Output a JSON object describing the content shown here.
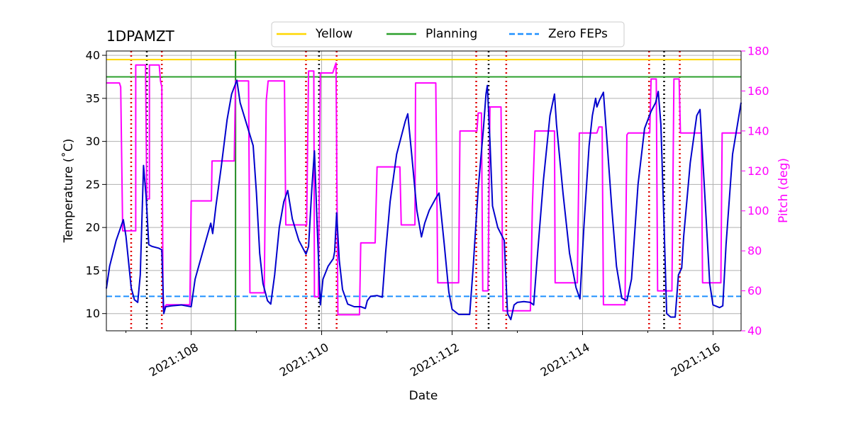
{
  "chart_data": {
    "type": "line",
    "title": "1DPAMZT",
    "xlabel": "Date",
    "ylabel": "Temperature ($^\\circ$C)",
    "ylabel_display": "Temperature (˚C)",
    "y2label": "Pitch (deg)",
    "xlim": [
      106.7,
      116.43
    ],
    "ylim": [
      8,
      40.5
    ],
    "y2lim": [
      40,
      180
    ],
    "x_ticks": [
      {
        "value": 108,
        "label": "2021:108"
      },
      {
        "value": 110,
        "label": "2021:110"
      },
      {
        "value": 112,
        "label": "2021:112"
      },
      {
        "value": 114,
        "label": "2021:114"
      },
      {
        "value": 116,
        "label": "2021:116"
      }
    ],
    "y_ticks": [
      10,
      15,
      20,
      25,
      30,
      35,
      40
    ],
    "y2_ticks": [
      40,
      60,
      80,
      100,
      120,
      140,
      160,
      180
    ],
    "grid": true,
    "legend": {
      "placement": "top-center",
      "entries": [
        {
          "name": "Yellow",
          "color": "#ffd700",
          "style": "solid"
        },
        {
          "name": "Planning",
          "color": "#2ca02c",
          "style": "solid"
        },
        {
          "name": "Zero FEPs",
          "color": "#1e90ff",
          "style": "dashed"
        }
      ]
    },
    "hlines": [
      {
        "name": "Yellow",
        "y": 39.5,
        "color": "#ffd700",
        "style": "solid"
      },
      {
        "name": "Planning",
        "y": 37.5,
        "color": "#2ca02c",
        "style": "solid"
      },
      {
        "name": "Zero FEPs",
        "y": 12.0,
        "color": "#1e90ff",
        "style": "dashed"
      }
    ],
    "vlines": {
      "green": [
        108.68
      ],
      "black_dotted": [
        107.32,
        109.96,
        112.56,
        115.25
      ],
      "red_dotted": [
        107.08,
        107.55,
        109.76,
        110.23,
        112.37,
        112.83,
        115.02,
        115.49
      ]
    },
    "series": [
      {
        "name": "1DPAMZT",
        "axis": "left",
        "color": "#0000cd",
        "points": [
          [
            106.7,
            12.9
          ],
          [
            106.75,
            15.5
          ],
          [
            106.85,
            18.5
          ],
          [
            106.96,
            20.9
          ],
          [
            107.0,
            19.0
          ],
          [
            107.08,
            13.0
          ],
          [
            107.13,
            11.6
          ],
          [
            107.18,
            11.3
          ],
          [
            107.22,
            14.5
          ],
          [
            107.27,
            27.2
          ],
          [
            107.31,
            23.5
          ],
          [
            107.35,
            18.0
          ],
          [
            107.4,
            17.8
          ],
          [
            107.5,
            17.6
          ],
          [
            107.55,
            17.4
          ],
          [
            107.58,
            10.0
          ],
          [
            107.61,
            10.8
          ],
          [
            107.7,
            10.9
          ],
          [
            107.85,
            11.0
          ],
          [
            108.0,
            10.8
          ],
          [
            108.06,
            14.0
          ],
          [
            108.2,
            17.8
          ],
          [
            108.3,
            20.5
          ],
          [
            108.33,
            19.3
          ],
          [
            108.38,
            22.5
          ],
          [
            108.46,
            27.0
          ],
          [
            108.55,
            32.5
          ],
          [
            108.62,
            35.5
          ],
          [
            108.7,
            37.1
          ],
          [
            108.75,
            34.5
          ],
          [
            108.85,
            32.0
          ],
          [
            108.95,
            29.5
          ],
          [
            109.0,
            24.0
          ],
          [
            109.05,
            17.0
          ],
          [
            109.1,
            13.5
          ],
          [
            109.17,
            11.5
          ],
          [
            109.22,
            11.1
          ],
          [
            109.28,
            14.5
          ],
          [
            109.35,
            20.0
          ],
          [
            109.42,
            23.0
          ],
          [
            109.48,
            24.3
          ],
          [
            109.55,
            21.0
          ],
          [
            109.65,
            18.5
          ],
          [
            109.76,
            16.9
          ],
          [
            109.8,
            17.8
          ],
          [
            109.85,
            24.5
          ],
          [
            109.89,
            28.9
          ],
          [
            109.93,
            20.5
          ],
          [
            109.98,
            11.0
          ],
          [
            110.02,
            14.0
          ],
          [
            110.1,
            15.5
          ],
          [
            110.18,
            16.4
          ],
          [
            110.2,
            17.2
          ],
          [
            110.23,
            21.7
          ],
          [
            110.27,
            16.2
          ],
          [
            110.32,
            12.8
          ],
          [
            110.4,
            11.1
          ],
          [
            110.5,
            10.8
          ],
          [
            110.6,
            10.8
          ],
          [
            110.67,
            10.6
          ],
          [
            110.7,
            11.5
          ],
          [
            110.75,
            12.0
          ],
          [
            110.85,
            12.1
          ],
          [
            110.93,
            11.9
          ],
          [
            110.98,
            17.0
          ],
          [
            111.05,
            23.0
          ],
          [
            111.15,
            28.5
          ],
          [
            111.28,
            32.3
          ],
          [
            111.32,
            33.2
          ],
          [
            111.38,
            28.5
          ],
          [
            111.46,
            22.0
          ],
          [
            111.53,
            18.9
          ],
          [
            111.58,
            20.5
          ],
          [
            111.65,
            22.0
          ],
          [
            111.75,
            23.4
          ],
          [
            111.8,
            24.0
          ],
          [
            111.88,
            18.0
          ],
          [
            111.95,
            12.5
          ],
          [
            112.0,
            10.5
          ],
          [
            112.1,
            9.9
          ],
          [
            112.2,
            9.9
          ],
          [
            112.27,
            9.9
          ],
          [
            112.32,
            15.0
          ],
          [
            112.4,
            24.5
          ],
          [
            112.48,
            31.5
          ],
          [
            112.52,
            35.5
          ],
          [
            112.54,
            36.5
          ],
          [
            112.58,
            30.0
          ],
          [
            112.62,
            22.5
          ],
          [
            112.7,
            20.0
          ],
          [
            112.8,
            18.5
          ],
          [
            112.82,
            15.0
          ],
          [
            112.85,
            10.0
          ],
          [
            112.9,
            9.3
          ],
          [
            112.95,
            11.0
          ],
          [
            113.0,
            11.3
          ],
          [
            113.1,
            11.4
          ],
          [
            113.2,
            11.3
          ],
          [
            113.25,
            11.0
          ],
          [
            113.3,
            16.0
          ],
          [
            113.4,
            25.5
          ],
          [
            113.5,
            33.0
          ],
          [
            113.57,
            35.5
          ],
          [
            113.6,
            32.0
          ],
          [
            113.7,
            24.0
          ],
          [
            113.8,
            17.0
          ],
          [
            113.9,
            13.0
          ],
          [
            113.96,
            11.7
          ],
          [
            114.02,
            20.0
          ],
          [
            114.1,
            29.5
          ],
          [
            114.15,
            33.0
          ],
          [
            114.2,
            35.0
          ],
          [
            114.22,
            34.0
          ],
          [
            114.26,
            34.8
          ],
          [
            114.32,
            35.7
          ],
          [
            114.38,
            29.5
          ],
          [
            114.45,
            22.0
          ],
          [
            114.52,
            15.5
          ],
          [
            114.6,
            11.8
          ],
          [
            114.68,
            11.5
          ],
          [
            114.75,
            14.0
          ],
          [
            114.85,
            25.0
          ],
          [
            114.95,
            31.5
          ],
          [
            115.05,
            33.5
          ],
          [
            115.12,
            34.5
          ],
          [
            115.16,
            35.8
          ],
          [
            115.2,
            32.0
          ],
          [
            115.25,
            20.0
          ],
          [
            115.29,
            10.0
          ],
          [
            115.35,
            9.6
          ],
          [
            115.42,
            9.6
          ],
          [
            115.47,
            14.5
          ],
          [
            115.52,
            15.3
          ],
          [
            115.55,
            19.0
          ],
          [
            115.65,
            27.5
          ],
          [
            115.75,
            33.0
          ],
          [
            115.8,
            33.7
          ],
          [
            115.88,
            23.0
          ],
          [
            115.95,
            13.5
          ],
          [
            116.0,
            11.0
          ],
          [
            116.1,
            10.7
          ],
          [
            116.15,
            10.9
          ],
          [
            116.2,
            18.0
          ],
          [
            116.3,
            28.5
          ],
          [
            116.43,
            34.5
          ]
        ]
      },
      {
        "name": "Pitch",
        "axis": "right",
        "color": "#ff00ff",
        "points": [
          [
            106.7,
            164
          ],
          [
            106.9,
            164
          ],
          [
            106.92,
            162
          ],
          [
            106.95,
            90
          ],
          [
            107.15,
            90
          ],
          [
            107.15,
            173
          ],
          [
            107.3,
            173
          ],
          [
            107.32,
            106
          ],
          [
            107.36,
            106
          ],
          [
            107.36,
            173
          ],
          [
            107.51,
            173
          ],
          [
            107.53,
            165
          ],
          [
            107.55,
            162
          ],
          [
            107.57,
            51
          ],
          [
            107.62,
            53
          ],
          [
            107.98,
            53
          ],
          [
            108.0,
            105
          ],
          [
            108.31,
            105
          ],
          [
            108.32,
            125
          ],
          [
            108.66,
            125
          ],
          [
            108.68,
            165
          ],
          [
            108.88,
            165
          ],
          [
            108.9,
            59
          ],
          [
            109.12,
            59
          ],
          [
            109.15,
            155
          ],
          [
            109.18,
            165
          ],
          [
            109.43,
            165
          ],
          [
            109.45,
            93
          ],
          [
            109.77,
            93
          ],
          [
            109.8,
            170
          ],
          [
            109.88,
            170
          ],
          [
            109.89,
            57
          ],
          [
            109.95,
            57
          ],
          [
            109.98,
            169
          ],
          [
            110.17,
            169
          ],
          [
            110.2,
            172
          ],
          [
            110.22,
            174
          ],
          [
            110.25,
            48
          ],
          [
            110.58,
            48
          ],
          [
            110.6,
            84
          ],
          [
            110.82,
            84
          ],
          [
            110.85,
            122
          ],
          [
            111.2,
            122
          ],
          [
            111.22,
            93
          ],
          [
            111.43,
            93
          ],
          [
            111.44,
            164
          ],
          [
            111.75,
            164
          ],
          [
            111.78,
            64
          ],
          [
            112.1,
            64
          ],
          [
            112.12,
            140
          ],
          [
            112.38,
            140
          ],
          [
            112.4,
            149
          ],
          [
            112.45,
            149
          ],
          [
            112.47,
            60
          ],
          [
            112.55,
            60
          ],
          [
            112.58,
            152
          ],
          [
            112.75,
            152
          ],
          [
            112.78,
            50
          ],
          [
            113.2,
            50
          ],
          [
            113.23,
            102
          ],
          [
            113.27,
            140
          ],
          [
            113.57,
            140
          ],
          [
            113.58,
            64
          ],
          [
            113.92,
            64
          ],
          [
            113.95,
            139
          ],
          [
            114.22,
            139
          ],
          [
            114.25,
            142
          ],
          [
            114.3,
            142
          ],
          [
            114.32,
            53
          ],
          [
            114.65,
            53
          ],
          [
            114.68,
            138
          ],
          [
            114.7,
            139
          ],
          [
            115.03,
            139
          ],
          [
            115.05,
            166
          ],
          [
            115.13,
            166
          ],
          [
            115.15,
            60
          ],
          [
            115.37,
            60
          ],
          [
            115.4,
            166
          ],
          [
            115.48,
            166
          ],
          [
            115.5,
            139
          ],
          [
            115.82,
            139
          ],
          [
            115.84,
            64
          ],
          [
            116.12,
            64
          ],
          [
            116.14,
            139
          ],
          [
            116.43,
            139
          ]
        ]
      }
    ]
  }
}
